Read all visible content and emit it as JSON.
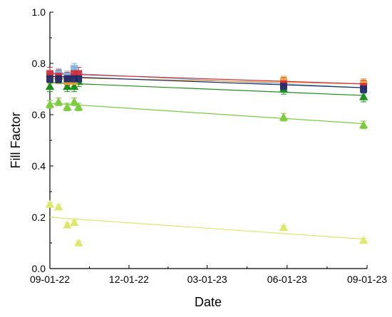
{
  "chart_data": {
    "type": "scatter",
    "title": "",
    "xlabel": "Date",
    "ylabel": "Fill Factor",
    "x_ticks": [
      "09-01-22",
      "12-01-22",
      "03-01-23",
      "06-01-23",
      "09-01-23"
    ],
    "x_tick_dates": [
      "2022-09-01",
      "2022-12-01",
      "2023-03-01",
      "2023-06-01",
      "2023-09-01"
    ],
    "xlim": [
      "2022-09-01",
      "2023-09-01"
    ],
    "y_ticks": [
      "0.0",
      "0.2",
      "0.4",
      "0.6",
      "0.8",
      "1.0"
    ],
    "ylim": [
      0,
      1.0
    ],
    "grid": false,
    "legend": "none",
    "series": [
      {
        "marker": "triangle",
        "color": "#dde86a",
        "points": [
          {
            "x": "2022-09-01",
            "y": 0.25
          },
          {
            "x": "2022-09-11",
            "y": 0.24
          },
          {
            "x": "2022-09-21",
            "y": 0.17
          },
          {
            "x": "2022-09-29",
            "y": 0.18
          },
          {
            "x": "2022-10-04",
            "y": 0.1
          },
          {
            "x": "2023-05-28",
            "y": 0.16
          },
          {
            "x": "2023-08-28",
            "y": 0.11
          }
        ],
        "fit": [
          {
            "x": "2022-09-01",
            "y": 0.2
          },
          {
            "x": "2023-08-28",
            "y": 0.115
          }
        ],
        "error": 0.008
      },
      {
        "marker": "triangle",
        "color": "#7ccd3e",
        "points": [
          {
            "x": "2022-09-01",
            "y": 0.64
          },
          {
            "x": "2022-09-11",
            "y": 0.65
          },
          {
            "x": "2022-09-21",
            "y": 0.63
          },
          {
            "x": "2022-09-29",
            "y": 0.65
          },
          {
            "x": "2022-10-04",
            "y": 0.63
          },
          {
            "x": "2023-05-28",
            "y": 0.59
          },
          {
            "x": "2023-08-28",
            "y": 0.56
          }
        ],
        "fit": [
          {
            "x": "2022-09-01",
            "y": 0.645
          },
          {
            "x": "2023-08-28",
            "y": 0.565
          }
        ],
        "error": 0.015
      },
      {
        "marker": "triangle",
        "color": "#1a8f1a",
        "points": [
          {
            "x": "2022-09-01",
            "y": 0.71
          },
          {
            "x": "2022-09-11",
            "y": 0.75
          },
          {
            "x": "2022-09-21",
            "y": 0.71
          },
          {
            "x": "2022-09-29",
            "y": 0.71
          },
          {
            "x": "2022-10-04",
            "y": 0.73
          },
          {
            "x": "2023-05-28",
            "y": 0.7
          },
          {
            "x": "2023-08-28",
            "y": 0.67
          }
        ],
        "fit": [
          {
            "x": "2022-09-01",
            "y": 0.725
          },
          {
            "x": "2023-08-28",
            "y": 0.675
          }
        ],
        "error": 0.02
      },
      {
        "marker": "square",
        "color": "#7ab8e0",
        "points": [
          {
            "x": "2022-09-01",
            "y": 0.75
          },
          {
            "x": "2022-09-11",
            "y": 0.76
          },
          {
            "x": "2022-09-21",
            "y": 0.75
          },
          {
            "x": "2022-09-29",
            "y": 0.78
          },
          {
            "x": "2022-10-04",
            "y": 0.75
          },
          {
            "x": "2023-05-28",
            "y": 0.71
          },
          {
            "x": "2023-08-28",
            "y": 0.7
          }
        ],
        "fit": [
          {
            "x": "2022-09-01",
            "y": 0.765
          },
          {
            "x": "2023-08-28",
            "y": 0.705
          }
        ],
        "error": 0.02
      },
      {
        "marker": "square",
        "color": "#f0a030",
        "points": [
          {
            "x": "2022-09-01",
            "y": 0.74
          },
          {
            "x": "2022-09-11",
            "y": 0.74
          },
          {
            "x": "2022-09-21",
            "y": 0.73
          },
          {
            "x": "2022-09-29",
            "y": 0.73
          },
          {
            "x": "2022-10-04",
            "y": 0.74
          },
          {
            "x": "2023-05-28",
            "y": 0.73
          },
          {
            "x": "2023-08-28",
            "y": 0.72
          }
        ],
        "fit": [
          {
            "x": "2022-09-01",
            "y": 0.745
          },
          {
            "x": "2023-08-28",
            "y": 0.72
          }
        ],
        "error": 0.02
      },
      {
        "marker": "square",
        "color": "#d42a3a",
        "points": [
          {
            "x": "2022-09-01",
            "y": 0.76
          },
          {
            "x": "2022-09-11",
            "y": 0.75
          },
          {
            "x": "2022-09-21",
            "y": 0.74
          },
          {
            "x": "2022-09-29",
            "y": 0.76
          },
          {
            "x": "2022-10-04",
            "y": 0.76
          },
          {
            "x": "2023-05-28",
            "y": 0.72
          },
          {
            "x": "2023-08-28",
            "y": 0.71
          }
        ],
        "fit": [
          {
            "x": "2022-09-01",
            "y": 0.76
          },
          {
            "x": "2023-08-28",
            "y": 0.72
          }
        ],
        "error": 0.025
      },
      {
        "marker": "square",
        "color": "#1c2a6e",
        "points": [
          {
            "x": "2022-09-01",
            "y": 0.74
          },
          {
            "x": "2022-09-11",
            "y": 0.74
          },
          {
            "x": "2022-09-21",
            "y": 0.74
          },
          {
            "x": "2022-09-29",
            "y": 0.74
          },
          {
            "x": "2022-10-04",
            "y": 0.74
          },
          {
            "x": "2023-05-28",
            "y": 0.71
          },
          {
            "x": "2023-08-28",
            "y": 0.7
          }
        ],
        "fit": [
          {
            "x": "2022-09-01",
            "y": 0.75
          },
          {
            "x": "2023-08-28",
            "y": 0.705
          }
        ],
        "error": 0.015
      }
    ]
  }
}
